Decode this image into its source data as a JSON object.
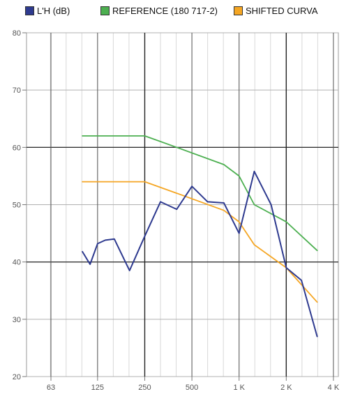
{
  "chart_data": {
    "type": "line",
    "title": "",
    "xlabel": "",
    "ylabel": "",
    "x_scale": "log",
    "xlim": [
      44,
      4300
    ],
    "ylim": [
      20,
      80
    ],
    "grid": true,
    "legend_placement": "top",
    "x_ticks": [
      {
        "value": 63,
        "label": "63"
      },
      {
        "value": 125,
        "label": "125"
      },
      {
        "value": 250,
        "label": "250"
      },
      {
        "value": 500,
        "label": "500"
      },
      {
        "value": 1000,
        "label": "1 K"
      },
      {
        "value": 2000,
        "label": "2 K"
      },
      {
        "value": 4000,
        "label": "4 K"
      }
    ],
    "y_ticks": [
      20,
      30,
      40,
      50,
      60,
      70,
      80
    ],
    "series": [
      {
        "name": "L'H (dB)",
        "color": "#2e3a8f",
        "points": [
          [
            100,
            41.8
          ],
          [
            112,
            39.6
          ],
          [
            125,
            43.2
          ],
          [
            140,
            43.8
          ],
          [
            160,
            44
          ],
          [
            200,
            38.5
          ],
          [
            250,
            44.5
          ],
          [
            315,
            50.5
          ],
          [
            400,
            49.2
          ],
          [
            500,
            53.2
          ],
          [
            630,
            50.5
          ],
          [
            800,
            50.3
          ],
          [
            1000,
            45
          ],
          [
            1250,
            55.8
          ],
          [
            1600,
            50
          ],
          [
            2000,
            39
          ],
          [
            2500,
            36.8
          ],
          [
            3150,
            27
          ]
        ]
      },
      {
        "name": "REFERENCE (180 717-2)",
        "color": "#4caf50",
        "points": [
          [
            100,
            62
          ],
          [
            250,
            62
          ],
          [
            400,
            60
          ],
          [
            800,
            57
          ],
          [
            1000,
            55
          ],
          [
            1250,
            50
          ],
          [
            2000,
            47
          ],
          [
            3150,
            42
          ]
        ]
      },
      {
        "name": "SHIFTED CURVA",
        "color": "#f5a623",
        "points": [
          [
            100,
            54
          ],
          [
            250,
            54
          ],
          [
            400,
            52
          ],
          [
            800,
            49
          ],
          [
            1000,
            47
          ],
          [
            1250,
            43
          ],
          [
            2000,
            39
          ],
          [
            3150,
            33
          ]
        ]
      }
    ]
  }
}
